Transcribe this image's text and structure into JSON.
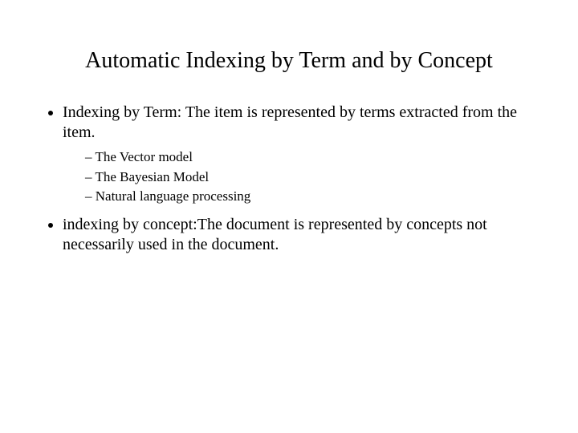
{
  "title": "Automatic Indexing by Term and by Concept",
  "bullets": [
    {
      "text": "Indexing by Term: The item is represented by terms extracted from the item.",
      "sub": [
        "The Vector model",
        "The Bayesian Model",
        "Natural language processing"
      ]
    },
    {
      "text": "indexing by concept:The document is represented by concepts not necessarily used in the document.",
      "sub": []
    }
  ]
}
